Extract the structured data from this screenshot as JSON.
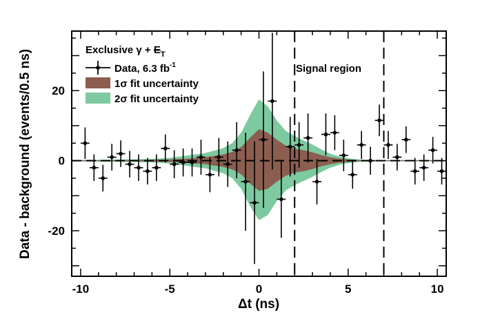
{
  "chart_data": {
    "type": "scatter",
    "title": "",
    "xlabel": "Δt (ns)",
    "ylabel": "Data - background (events/0.5 ns)",
    "xlim": [
      -10.5,
      10.5
    ],
    "ylim": [
      -33,
      37
    ],
    "x_ticks": [
      -10,
      -5,
      0,
      5,
      10
    ],
    "x_tick_labels": [
      "-10",
      "-5",
      "0",
      "5",
      "10"
    ],
    "y_ticks": [
      -20,
      0,
      20
    ],
    "y_tick_labels": [
      "-20",
      "0",
      "20"
    ],
    "grid": false,
    "legend_position": "top-left",
    "legend": {
      "header_prefix": "Exclusive γ + ",
      "header_met": "E",
      "header_met_sub": "T",
      "data_label_text": "Data, 6.3 fb",
      "data_label_sup": "-1",
      "band1_label": "1σ fit uncertainty",
      "band2_label": "2σ fit uncertainty"
    },
    "annotations": {
      "signal_region_label": "Signal region",
      "signal_region_bounds": [
        2,
        7
      ]
    },
    "colors": {
      "band1": "#8b5e50",
      "band2": "#7dc9a0",
      "markers": "#000000"
    },
    "bands": {
      "x": [
        -10.5,
        -8,
        -6,
        -5,
        -4,
        -3,
        -2,
        -1.5,
        -1,
        -0.5,
        0,
        0.5,
        1,
        1.5,
        2,
        2.5,
        3,
        3.5,
        4,
        4.5,
        5,
        5.5,
        6,
        7,
        8,
        10.5
      ],
      "sigma1_upper": [
        0.1,
        0.15,
        0.25,
        0.35,
        0.6,
        1.0,
        1.8,
        2.5,
        3.9,
        6.5,
        9.0,
        8.0,
        6.0,
        4.3,
        3.4,
        3.0,
        2.4,
        1.6,
        1.0,
        0.6,
        0.35,
        0.2,
        0.12,
        0.1,
        0.1,
        0.1
      ],
      "sigma1_lower": [
        -0.1,
        -0.15,
        -0.25,
        -0.35,
        -0.6,
        -1.0,
        -1.8,
        -2.5,
        -3.9,
        -6.5,
        -8.6,
        -8.0,
        -6.0,
        -4.3,
        -3.4,
        -3.0,
        -2.4,
        -1.6,
        -1.0,
        -0.6,
        -0.35,
        -0.2,
        -0.12,
        -0.1,
        -0.1,
        -0.1
      ],
      "sigma2_upper": [
        0.2,
        0.3,
        0.5,
        0.8,
        1.5,
        2.2,
        3.6,
        5.0,
        8.0,
        13.0,
        17.5,
        15.5,
        11.5,
        8.5,
        7.0,
        5.8,
        4.6,
        3.2,
        2.0,
        1.2,
        0.7,
        0.4,
        0.25,
        0.2,
        0.2,
        0.2
      ],
      "sigma2_lower": [
        -0.2,
        -0.3,
        -0.5,
        -0.8,
        -1.5,
        -2.2,
        -3.6,
        -5.0,
        -8.0,
        -13.0,
        -17.0,
        -15.5,
        -11.5,
        -8.5,
        -7.0,
        -5.8,
        -4.6,
        -3.2,
        -2.0,
        -1.2,
        -0.7,
        -0.4,
        -0.25,
        -0.2,
        -0.2,
        -0.2
      ]
    },
    "series": [
      {
        "name": "Data, 6.3 fb-1",
        "x": [
          -9.75,
          -9.25,
          -8.75,
          -8.25,
          -7.75,
          -7.25,
          -6.75,
          -6.25,
          -5.75,
          -5.25,
          -4.75,
          -4.25,
          -3.75,
          -3.25,
          -2.75,
          -2.25,
          -1.75,
          -1.25,
          -0.75,
          -0.25,
          0.25,
          0.75,
          1.25,
          1.75,
          2.25,
          2.75,
          3.25,
          3.75,
          4.25,
          4.75,
          5.25,
          5.75,
          6.25,
          6.75,
          7.25,
          7.75,
          8.25,
          8.75,
          9.25,
          9.75,
          10.25
        ],
        "y": [
          5,
          -2,
          -5,
          1,
          2,
          -1,
          -2,
          -3,
          -2,
          3.5,
          -1,
          -0.5,
          -0.5,
          1,
          -4,
          1,
          -1,
          3,
          -6,
          -12,
          6,
          17,
          -11,
          4,
          4.5,
          6.5,
          -6,
          7.5,
          8,
          1.5,
          -4,
          4.5,
          0,
          11.5,
          4.5,
          1,
          6,
          -3,
          -2,
          3,
          -3
        ],
        "yerr": [
          4.5,
          3.8,
          3.8,
          3.8,
          3.8,
          3.8,
          3.8,
          3.8,
          3.8,
          4.0,
          4.0,
          4.0,
          4.0,
          5.0,
          5.0,
          5.5,
          6.5,
          8.0,
          14.0,
          17.5,
          19.5,
          19.5,
          11.0,
          8.5,
          6.5,
          7.0,
          6.5,
          6.0,
          5.0,
          4.5,
          4.0,
          4.0,
          4.0,
          4.5,
          4.0,
          3.8,
          3.8,
          3.8,
          3.8,
          3.8,
          3.8
        ]
      }
    ]
  }
}
